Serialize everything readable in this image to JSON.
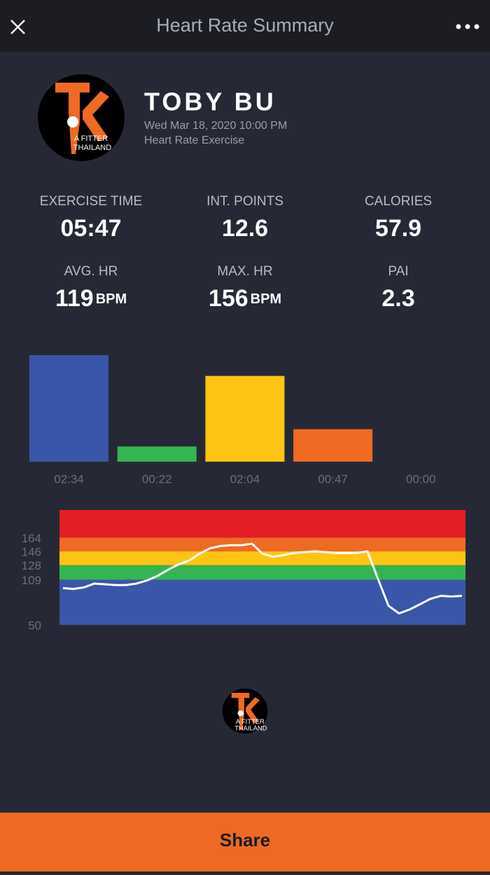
{
  "header": {
    "title": "Heart Rate Summary"
  },
  "profile": {
    "name": "TOBY BU",
    "datetime": "Wed Mar 18, 2020 10:00 PM",
    "activity": "Heart Rate Exercise"
  },
  "logo": {
    "line1": "A FITTER",
    "line2": "THAILAND"
  },
  "stats": [
    {
      "label": "EXERCISE TIME",
      "value": "05:47"
    },
    {
      "label": "INT. POINTS",
      "value": 12.6
    },
    {
      "label": "CALORIES",
      "value": 57.9
    },
    {
      "label": "AVG. HR",
      "value": 119,
      "unit": "BPM"
    },
    {
      "label": "MAX. HR",
      "value": 156,
      "unit": "BPM"
    },
    {
      "label": "PAI",
      "value": 2.3
    }
  ],
  "chart_data": [
    {
      "type": "bar",
      "values": [
        154,
        22,
        124,
        47,
        0
      ],
      "value_labels": [
        "02:34",
        "00:22",
        "02:04",
        "00:47",
        "00:00"
      ],
      "colors": [
        "#3a56a8",
        "#35b552",
        "#fdc415",
        "#ef6a23",
        "#e31e24"
      ]
    },
    {
      "type": "line",
      "ylim": [
        50,
        200
      ],
      "yticks": [
        50,
        109,
        128,
        146,
        164
      ],
      "zone_colors": [
        "#3a56a8",
        "#35b552",
        "#fdc415",
        "#ef6a23",
        "#e31e24"
      ],
      "color": "#ffffff",
      "values": [
        98,
        97,
        99,
        104,
        103,
        102,
        102,
        104,
        108,
        114,
        122,
        129,
        134,
        143,
        150,
        153,
        154,
        154,
        156,
        143,
        139,
        141,
        144,
        145,
        146,
        145,
        144,
        144,
        144,
        146,
        110,
        75,
        65,
        70,
        77,
        84,
        88,
        87,
        88
      ]
    }
  ],
  "footer": {
    "button": "Share"
  }
}
